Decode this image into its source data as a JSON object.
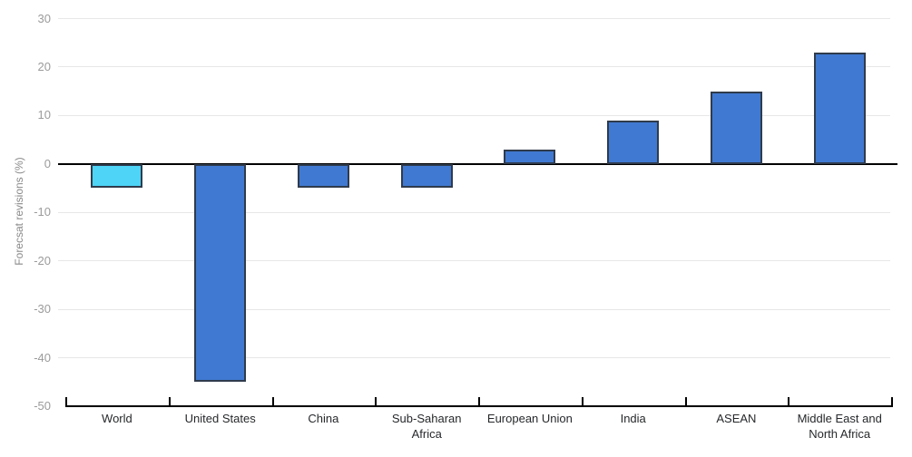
{
  "chart_data": {
    "type": "bar",
    "title": "",
    "ylabel": "Forecsat revisions (%)",
    "xlabel": "",
    "categories": [
      "World",
      "United States",
      "China",
      "Sub-Saharan Africa",
      "European Union",
      "India",
      "ASEAN",
      "Middle East and North Africa"
    ],
    "values": [
      -5,
      -45,
      -5,
      -5,
      3,
      9,
      15,
      23
    ],
    "highlight_category": "World",
    "bar_colors": [
      "#4ED4F7",
      "#4079D1",
      "#4079D1",
      "#4079D1",
      "#4079D1",
      "#4079D1",
      "#4079D1",
      "#4079D1"
    ],
    "ylim": [
      -50,
      30
    ],
    "yticks": [
      30,
      20,
      10,
      0,
      -10,
      -20,
      -30,
      -40,
      -50
    ],
    "grid": "horizontal-light",
    "legend": "none"
  },
  "colors": {
    "bar_default": "#4079D1",
    "bar_highlight": "#4ED4F7",
    "bar_border": "#2F3B4C",
    "gridline": "#E7E7E7",
    "axis_line": "#000000",
    "y_tick_label": "#9B9B9B",
    "category_label": "#26282B",
    "axis_title": "#8A8A8A",
    "background": "#FFFFFF"
  }
}
